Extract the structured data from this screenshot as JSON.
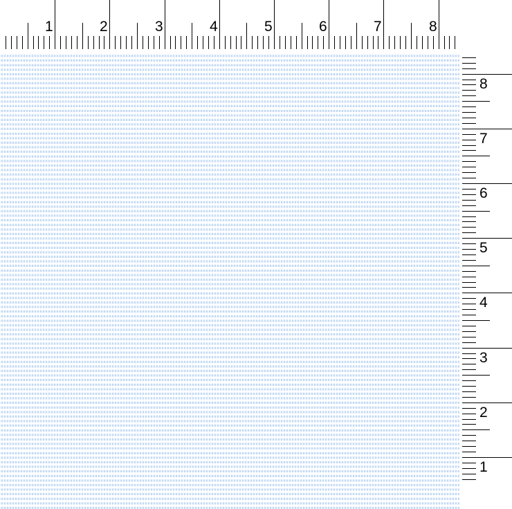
{
  "top_ruler": {
    "labels": [
      "1",
      "2",
      "3",
      "4",
      "5",
      "6",
      "7",
      "8"
    ]
  },
  "right_ruler": {
    "labels": [
      "8",
      "7",
      "6",
      "5",
      "4",
      "3",
      "2",
      "1"
    ]
  },
  "fabric": {
    "pattern": "houndstooth",
    "color": "#c3daf4",
    "background": "#ffffff"
  }
}
